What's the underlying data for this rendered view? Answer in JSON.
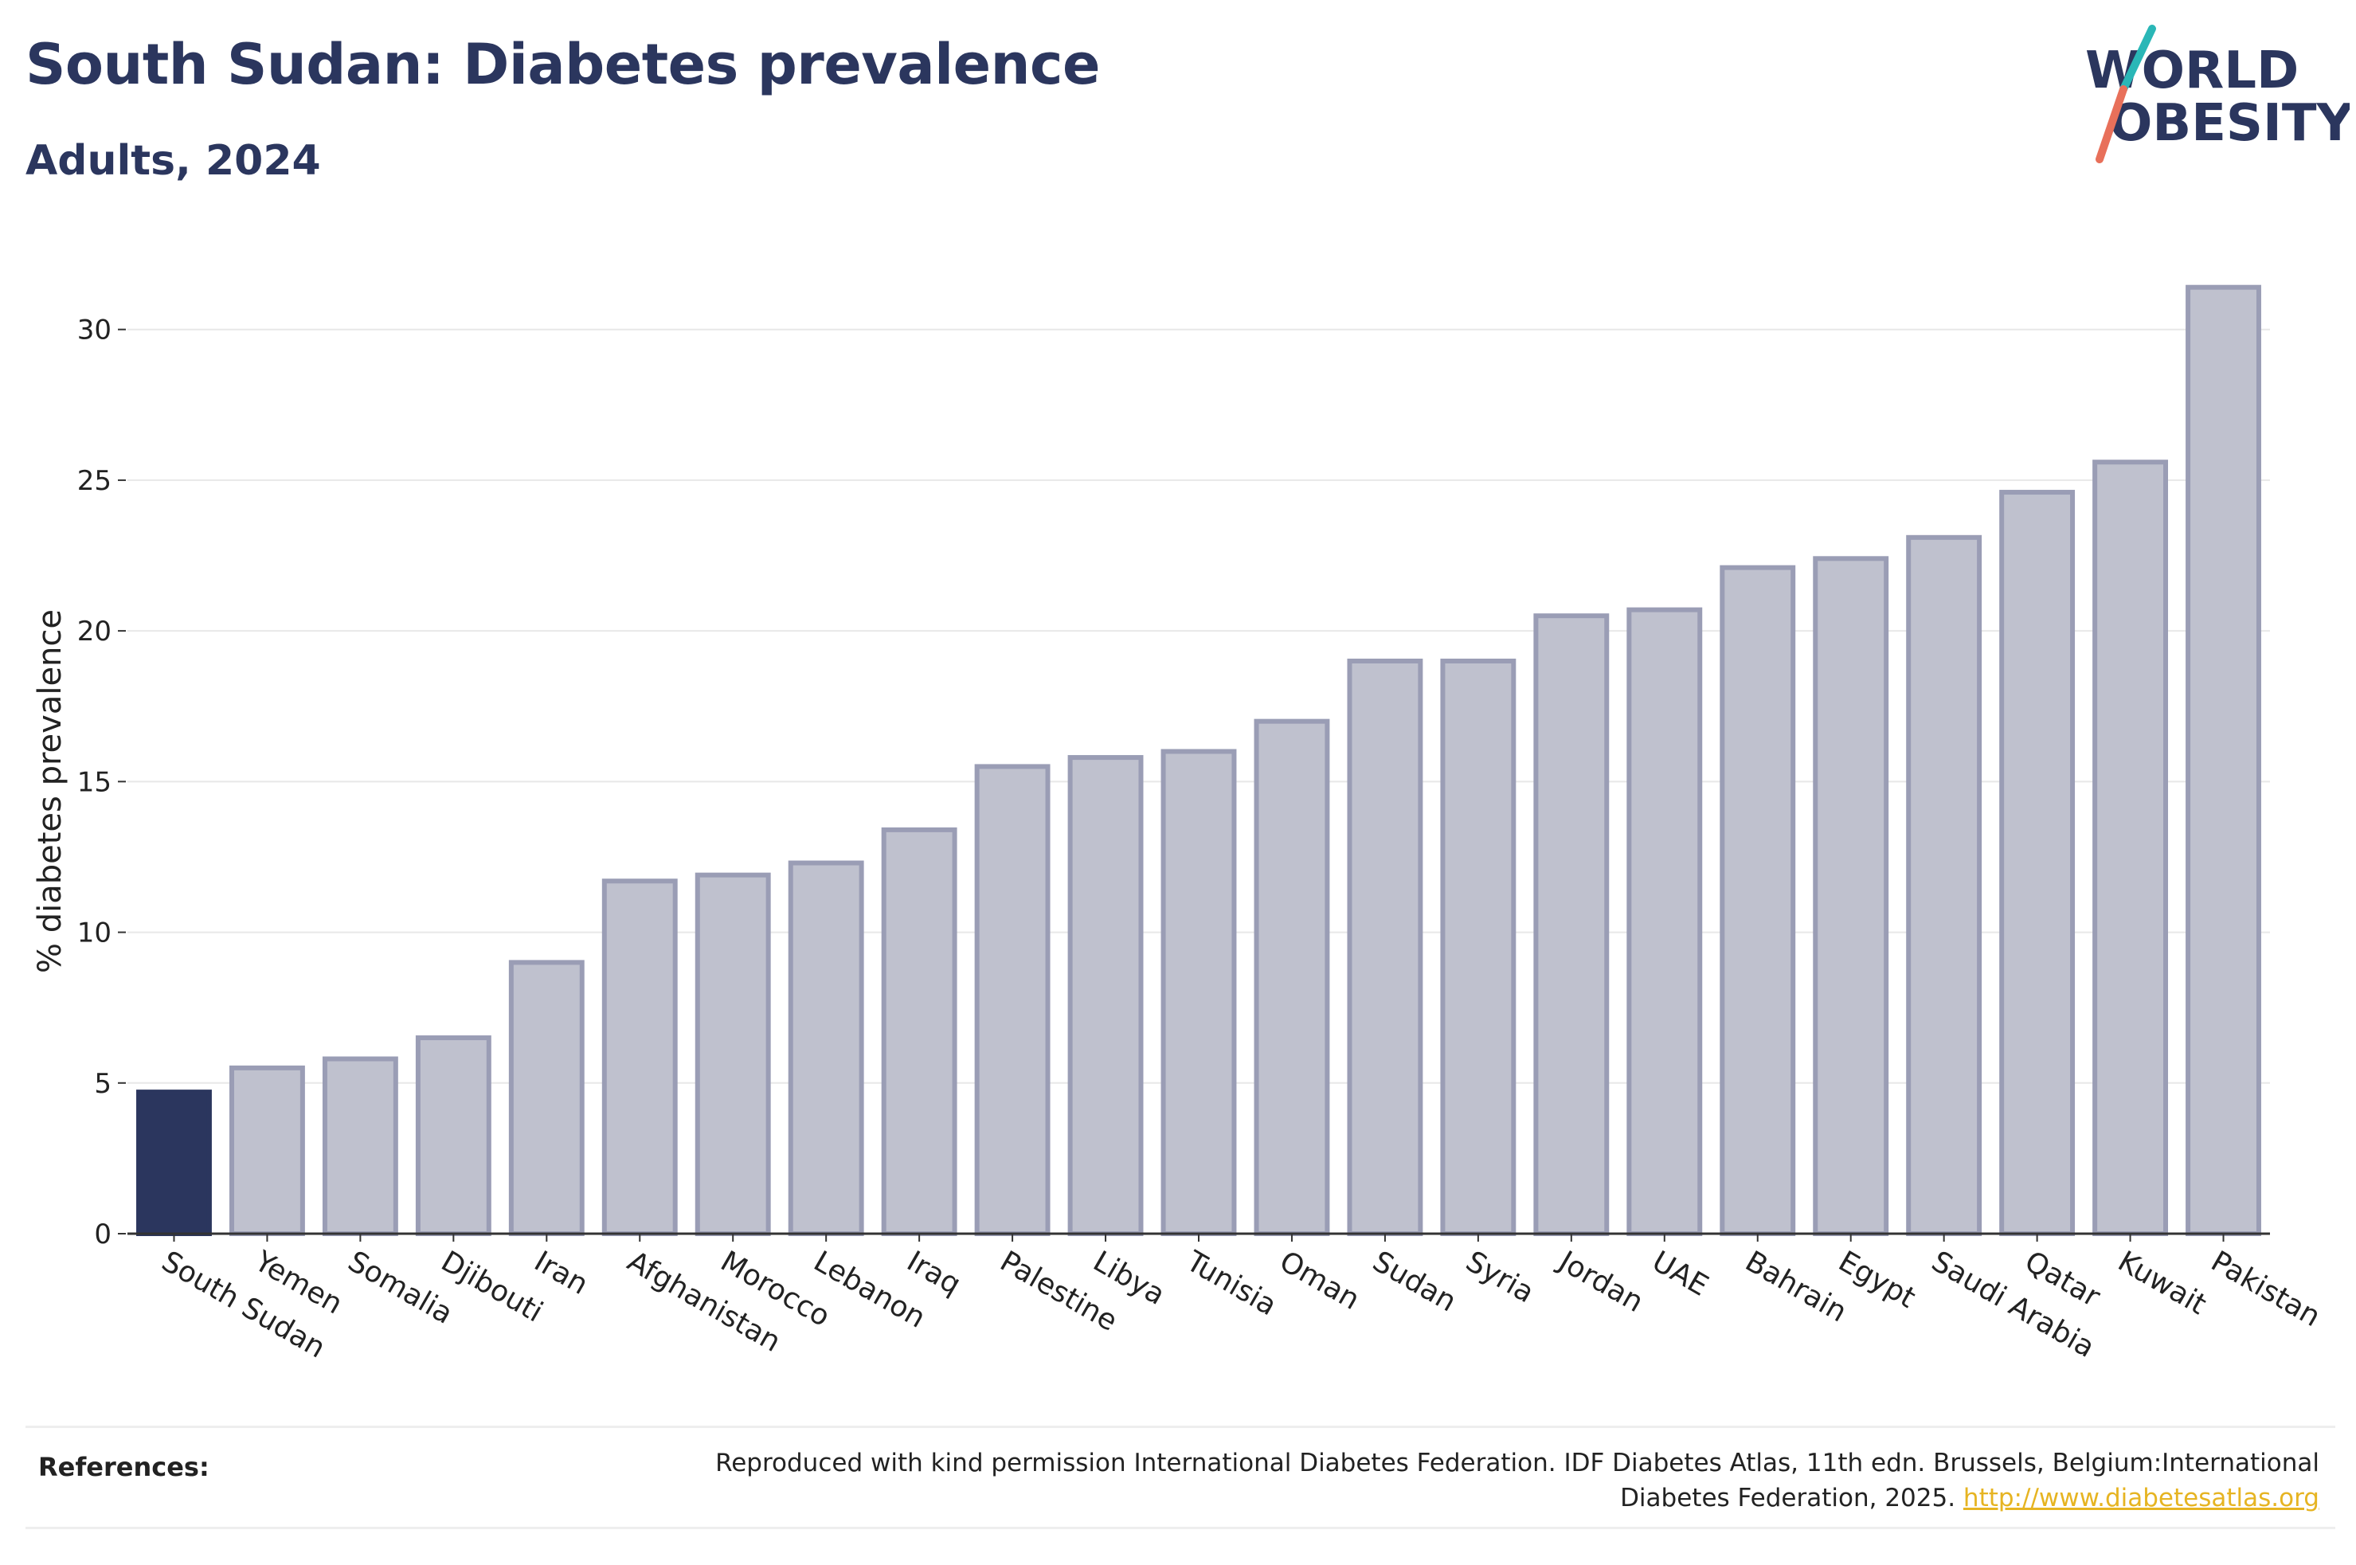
{
  "header": {
    "title": "South Sudan: Diabetes prevalence",
    "subtitle": "Adults, 2024"
  },
  "logo": {
    "line1": "WORLD",
    "line2": "OBESITY",
    "slash_colors": [
      "#2ab7b7",
      "#e8705a"
    ],
    "text_color": "#2b365e"
  },
  "chart_data": {
    "type": "bar",
    "categories": [
      "South Sudan",
      "Yemen",
      "Somalia",
      "Djibouti",
      "Iran",
      "Afghanistan",
      "Morocco",
      "Lebanon",
      "Iraq",
      "Palestine",
      "Libya",
      "Tunisia",
      "Oman",
      "Sudan",
      "Syria",
      "Jordan",
      "UAE",
      "Bahrain",
      "Egypt",
      "Saudi Arabia",
      "Qatar",
      "Kuwait",
      "Pakistan"
    ],
    "values": [
      4.7,
      5.5,
      5.8,
      6.5,
      9.0,
      11.7,
      11.9,
      12.3,
      13.4,
      15.5,
      15.8,
      16.0,
      17.0,
      19.0,
      19.0,
      20.5,
      20.7,
      22.1,
      22.4,
      23.1,
      24.6,
      25.6,
      31.4
    ],
    "highlight": "South Sudan",
    "ylabel": "% diabetes prevalence",
    "xlabel": "",
    "ylim": [
      0,
      32
    ],
    "yticks": [
      0,
      5,
      10,
      15,
      20,
      25,
      30
    ],
    "grid": true,
    "colors": {
      "highlight_fill": "#2b365e",
      "bar_fill": "#bfc1ce",
      "bar_stroke": "#9a9db5",
      "grid": "#e8e8e8",
      "axis": "#333333"
    }
  },
  "references": {
    "label": "References:",
    "text": "Reproduced with kind permission International Diabetes Federation. IDF Diabetes Atlas, 11th edn. Brussels, Belgium:International Diabetes Federation, 2025.",
    "link": "http://www.diabetesatlas.org"
  }
}
